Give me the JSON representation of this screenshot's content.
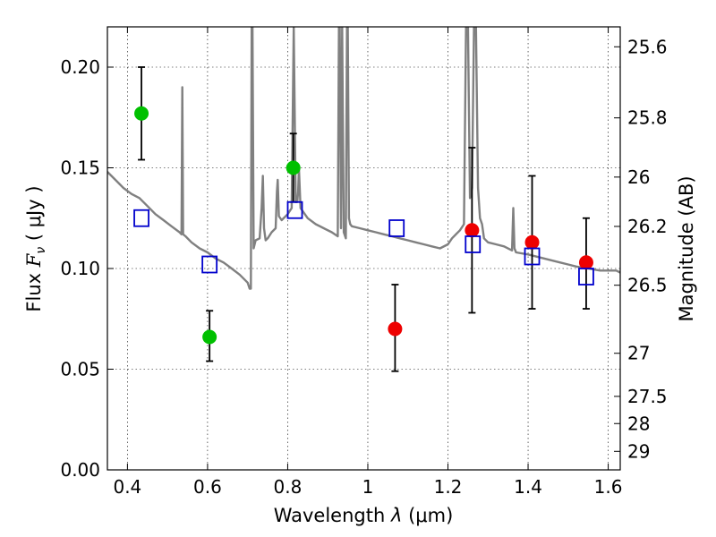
{
  "chart_data": {
    "type": "scatter",
    "xlabel": {
      "prefix": "Wavelength ",
      "symbol": "λ",
      "unit": " (μm)"
    },
    "ylabel": {
      "prefix": "Flux ",
      "symbol": "F",
      "subscript": "ν",
      "unit": " ( μJy )"
    },
    "y2label": "Magnitude (AB)",
    "xlim": [
      0.35,
      1.63
    ],
    "ylim": [
      0.0,
      0.22
    ],
    "grid": true,
    "xticks": [
      {
        "value": 0.4,
        "label": "0.4"
      },
      {
        "value": 0.6,
        "label": "0.6"
      },
      {
        "value": 0.8,
        "label": "0.8"
      },
      {
        "value": 1.0,
        "label": "1"
      },
      {
        "value": 1.2,
        "label": "1.2"
      },
      {
        "value": 1.4,
        "label": "1.4"
      },
      {
        "value": 1.6,
        "label": "1.6"
      }
    ],
    "yticks": [
      {
        "value": 0.0,
        "label": "0.00"
      },
      {
        "value": 0.05,
        "label": "0.05"
      },
      {
        "value": 0.1,
        "label": "0.10"
      },
      {
        "value": 0.15,
        "label": "0.15"
      },
      {
        "value": 0.2,
        "label": "0.20"
      }
    ],
    "y2ticks": [
      {
        "label": "25.6",
        "flux": 0.2101
      },
      {
        "label": "25.8",
        "flux": 0.1748
      },
      {
        "label": "26",
        "flux": 0.1454
      },
      {
        "label": "26.2",
        "flux": 0.1209
      },
      {
        "label": "26.5",
        "flux": 0.0917
      },
      {
        "label": "27",
        "flux": 0.0579
      },
      {
        "label": "27.5",
        "flux": 0.0365
      },
      {
        "label": "28",
        "flux": 0.023
      },
      {
        "label": "29",
        "flux": 0.0092
      }
    ],
    "series": [
      {
        "marker": "circle",
        "color": "#00c000",
        "points": [
          {
            "x": 0.435,
            "y": 0.177,
            "ylow": 0.154,
            "yhigh": 0.2
          },
          {
            "x": 0.605,
            "y": 0.066,
            "ylow": 0.054,
            "yhigh": 0.079
          },
          {
            "x": 0.814,
            "y": 0.15,
            "ylow": 0.133,
            "yhigh": 0.167
          }
        ]
      },
      {
        "marker": "circle",
        "color": "#ee0000",
        "points": [
          {
            "x": 1.068,
            "y": 0.07,
            "ylow": 0.049,
            "yhigh": 0.092
          },
          {
            "x": 1.26,
            "y": 0.119,
            "ylow": 0.078,
            "yhigh": 0.16
          },
          {
            "x": 1.41,
            "y": 0.113,
            "ylow": 0.08,
            "yhigh": 0.146
          },
          {
            "x": 1.545,
            "y": 0.103,
            "ylow": 0.08,
            "yhigh": 0.125
          }
        ]
      },
      {
        "marker": "open-square",
        "color": "#0000cc",
        "points": [
          {
            "x": 0.435,
            "y": 0.125
          },
          {
            "x": 0.605,
            "y": 0.102
          },
          {
            "x": 0.818,
            "y": 0.129
          },
          {
            "x": 1.072,
            "y": 0.12
          },
          {
            "x": 1.262,
            "y": 0.112
          },
          {
            "x": 1.41,
            "y": 0.106
          },
          {
            "x": 1.545,
            "y": 0.096
          }
        ]
      }
    ],
    "spectrum": {
      "color": "#808080",
      "x": [
        0.35,
        0.37,
        0.39,
        0.41,
        0.43,
        0.45,
        0.47,
        0.49,
        0.51,
        0.53,
        0.535,
        0.537,
        0.539,
        0.545,
        0.56,
        0.58,
        0.6,
        0.62,
        0.64,
        0.66,
        0.68,
        0.7,
        0.705,
        0.708,
        0.71,
        0.712,
        0.715,
        0.72,
        0.73,
        0.735,
        0.738,
        0.741,
        0.745,
        0.75,
        0.76,
        0.77,
        0.773,
        0.775,
        0.778,
        0.785,
        0.8,
        0.81,
        0.815,
        0.82,
        0.824,
        0.826,
        0.828,
        0.832,
        0.85,
        0.87,
        0.89,
        0.91,
        0.925,
        0.928,
        0.93,
        0.933,
        0.936,
        0.94,
        0.945,
        0.948,
        0.95,
        0.953,
        0.956,
        0.96,
        0.98,
        1.0,
        1.02,
        1.04,
        1.06,
        1.08,
        1.1,
        1.12,
        1.14,
        1.16,
        1.18,
        1.2,
        1.21,
        1.23,
        1.24,
        1.245,
        1.25,
        1.255,
        1.26,
        1.265,
        1.27,
        1.275,
        1.28,
        1.285,
        1.29,
        1.3,
        1.32,
        1.34,
        1.36,
        1.363,
        1.366,
        1.37,
        1.4,
        1.44,
        1.48,
        1.5,
        1.52,
        1.55,
        1.58,
        1.6,
        1.62,
        1.63
      ],
      "y": [
        0.148,
        0.144,
        0.14,
        0.137,
        0.135,
        0.131,
        0.127,
        0.124,
        0.121,
        0.118,
        0.117,
        0.19,
        0.117,
        0.116,
        0.113,
        0.11,
        0.108,
        0.105,
        0.103,
        0.1,
        0.097,
        0.093,
        0.09,
        0.09,
        0.22,
        0.22,
        0.11,
        0.114,
        0.115,
        0.13,
        0.146,
        0.12,
        0.114,
        0.115,
        0.118,
        0.12,
        0.138,
        0.144,
        0.126,
        0.124,
        0.127,
        0.13,
        0.22,
        0.133,
        0.133,
        0.138,
        0.15,
        0.13,
        0.125,
        0.122,
        0.12,
        0.118,
        0.116,
        0.22,
        0.22,
        0.12,
        0.22,
        0.118,
        0.115,
        0.22,
        0.22,
        0.125,
        0.122,
        0.121,
        0.12,
        0.119,
        0.118,
        0.117,
        0.116,
        0.115,
        0.114,
        0.113,
        0.112,
        0.111,
        0.11,
        0.112,
        0.115,
        0.119,
        0.122,
        0.22,
        0.22,
        0.135,
        0.14,
        0.22,
        0.22,
        0.14,
        0.125,
        0.122,
        0.115,
        0.113,
        0.112,
        0.111,
        0.109,
        0.13,
        0.11,
        0.108,
        0.107,
        0.105,
        0.103,
        0.102,
        0.101,
        0.1,
        0.099,
        0.099,
        0.099,
        0.098
      ]
    }
  }
}
